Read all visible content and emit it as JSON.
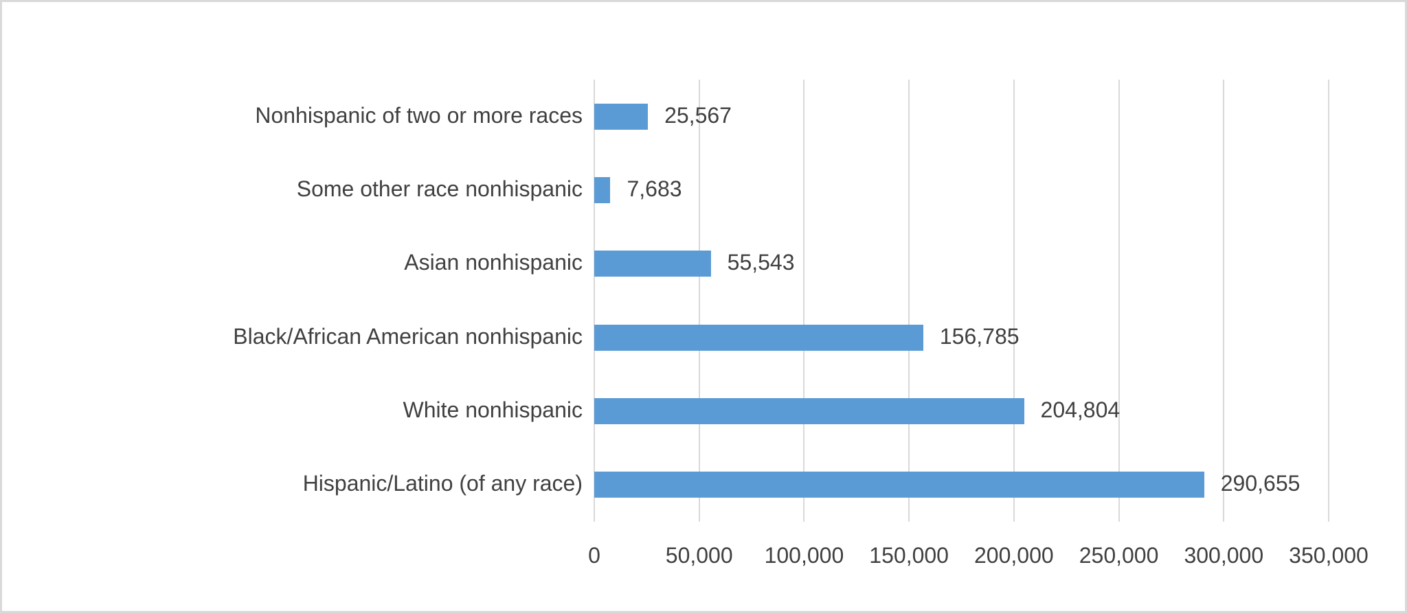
{
  "chart_data": {
    "type": "bar",
    "orientation": "horizontal",
    "title": "",
    "categories": [
      "Nonhispanic of two or more races",
      "Some other race nonhispanic",
      "Asian nonhispanic",
      "Black/African American nonhispanic",
      "White nonhispanic",
      "Hispanic/Latino (of any race)"
    ],
    "values": [
      25567,
      7683,
      55543,
      156785,
      204804,
      290655
    ],
    "data_labels": [
      "25,567",
      "7,683",
      "55,543",
      "156,785",
      "204,804",
      "290,655"
    ],
    "x_tick_labels": [
      "0",
      "50,000",
      "100,000",
      "150,000",
      "200,000",
      "250,000",
      "300,000",
      "350,000"
    ],
    "x_tick_values": [
      0,
      50000,
      100000,
      150000,
      200000,
      250000,
      300000,
      350000
    ],
    "xlim": [
      0,
      350000
    ],
    "xlabel": "",
    "ylabel": "",
    "grid": true,
    "legend": false,
    "colors": {
      "bar": "#5B9BD5",
      "gridline": "#D9D9D9",
      "text": "#404040",
      "border": "#D9D9D9",
      "background": "#FFFFFF"
    }
  }
}
